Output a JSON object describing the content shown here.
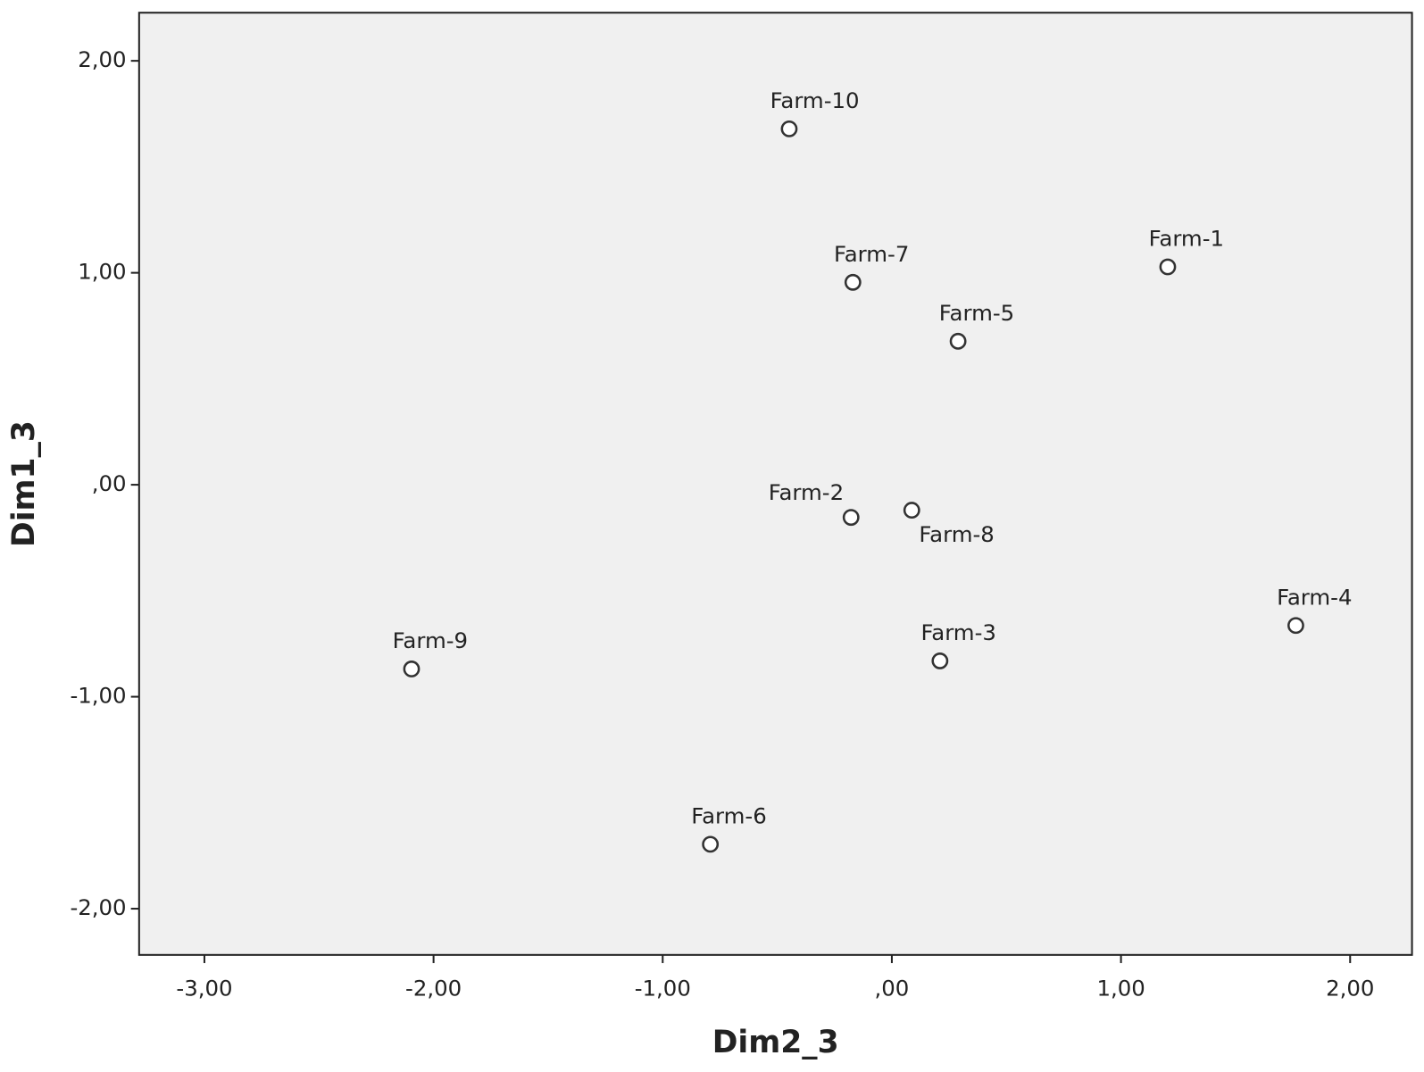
{
  "chart_data": {
    "type": "scatter",
    "x_label": "Dim2_3",
    "y_label": "Dim1_3",
    "labels": [
      "Farm-1",
      "Farm-2",
      "Farm-3",
      "Farm-4",
      "Farm-5",
      "Farm-6",
      "Farm-7",
      "Farm-8",
      "Farm-9",
      "Farm-10"
    ],
    "x": [
      1.204,
      -0.178,
      0.21,
      1.763,
      0.289,
      -0.792,
      -0.17,
      0.087,
      -2.096,
      -0.448
    ],
    "y": [
      1.028,
      -0.154,
      -0.831,
      -0.664,
      0.677,
      -1.696,
      0.955,
      -0.12,
      -0.869,
      1.679
    ],
    "xlim": [
      -3.285,
      2.27
    ],
    "ylim": [
      -2.218,
      2.227
    ],
    "xticks": [
      {
        "value": -3,
        "label": "-3,00"
      },
      {
        "value": -2,
        "label": "-2,00"
      },
      {
        "value": -1,
        "label": "-1,00"
      },
      {
        "value": 0,
        "label": ",00"
      },
      {
        "value": 1,
        "label": "1,00"
      },
      {
        "value": 2,
        "label": "2,00"
      }
    ],
    "yticks": [
      {
        "value": -2,
        "label": "-2,00"
      },
      {
        "value": -1,
        "label": "-1,00"
      },
      {
        "value": 0,
        "label": ",00"
      },
      {
        "value": 1,
        "label": "1,00"
      },
      {
        "value": 2,
        "label": "2,00"
      }
    ],
    "color": "#333333",
    "background": "#f0f0f0",
    "grid": false
  }
}
